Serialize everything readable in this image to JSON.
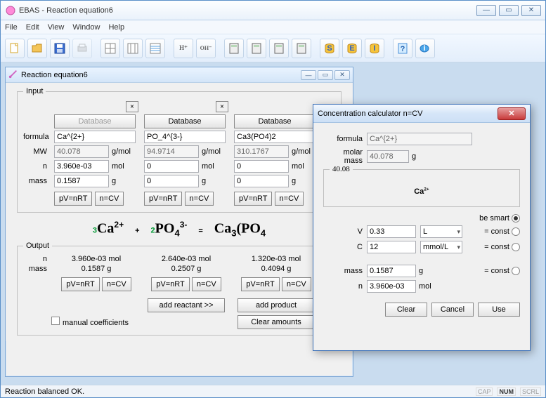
{
  "app": {
    "title": "EBAS - Reaction equation6"
  },
  "menu": {
    "file": "File",
    "edit": "Edit",
    "view": "View",
    "window": "Window",
    "help": "Help"
  },
  "child": {
    "title": "Reaction equation6",
    "input": {
      "legend": "Input",
      "labels": {
        "formula": "formula",
        "mw": "MW",
        "n": "n",
        "mass": "mass"
      },
      "cols": [
        {
          "db": "Database",
          "db_disabled": true,
          "formula": "Ca^{2+}",
          "mw": "40.078",
          "n": "3.960e-03",
          "mass": "0.1587"
        },
        {
          "db": "Database",
          "db_disabled": false,
          "formula": "PO_4^{3-}",
          "mw": "94.9714",
          "n": "0",
          "mass": "0"
        },
        {
          "db": "Database",
          "db_disabled": false,
          "formula": "Ca3(PO4)2",
          "mw": "310.1767",
          "n": "0",
          "mass": "0"
        }
      ],
      "units": {
        "mw": "g/mol",
        "n": "mol",
        "mass": "g"
      },
      "pv": "pV=nRT",
      "ncv": "n=CV"
    },
    "equation": {
      "html": "<span class='coef'>3</span>Ca<sup>2+</sup><span class='plus'>+</span><span class='coef'>2</span>PO<sub>4</sub><sup>3-</sup><span class='plus'>=</span>Ca<sub>3</sub>(PO<sub>4</sub>"
    },
    "output": {
      "legend": "Output",
      "labels": {
        "n": "n",
        "mass": "mass"
      },
      "cols": [
        {
          "n": "3.960e-03 mol",
          "mass": "0.1587 g"
        },
        {
          "n": "2.640e-03 mol",
          "mass": "0.2507 g"
        },
        {
          "n": "1.320e-03 mol",
          "mass": "0.4094 g"
        }
      ],
      "pv": "pV=nRT",
      "ncv": "n=CV",
      "add_reactant": "add reactant >>",
      "add_product": "add product",
      "manual": "manual coefficients",
      "clear": "Clear amounts"
    }
  },
  "dlg": {
    "title": "Concentration calculator n=CV",
    "labels": {
      "formula": "formula",
      "molar_mass": "molar mass",
      "V": "V",
      "C": "C",
      "mass": "mass",
      "n": "n"
    },
    "formula": "Ca^{2+}",
    "molar_mass": "40.078",
    "molar_mass_unit": "g",
    "box_legend": "40.08",
    "box_html": "Ca<sup>2+</sup>",
    "be_smart": "be smart",
    "V": "0.33",
    "V_unit": "L",
    "C": "12",
    "C_unit": "mmol/L",
    "mass": "0.1587",
    "mass_unit": "g",
    "n": "3.960e-03",
    "n_unit": "mol",
    "const": "= const",
    "btns": {
      "clear": "Clear",
      "cancel": "Cancel",
      "use": "Use"
    }
  },
  "status": {
    "msg": "Reaction balanced OK.",
    "cap": "CAP",
    "num": "NUM",
    "scrl": "SCRL"
  }
}
